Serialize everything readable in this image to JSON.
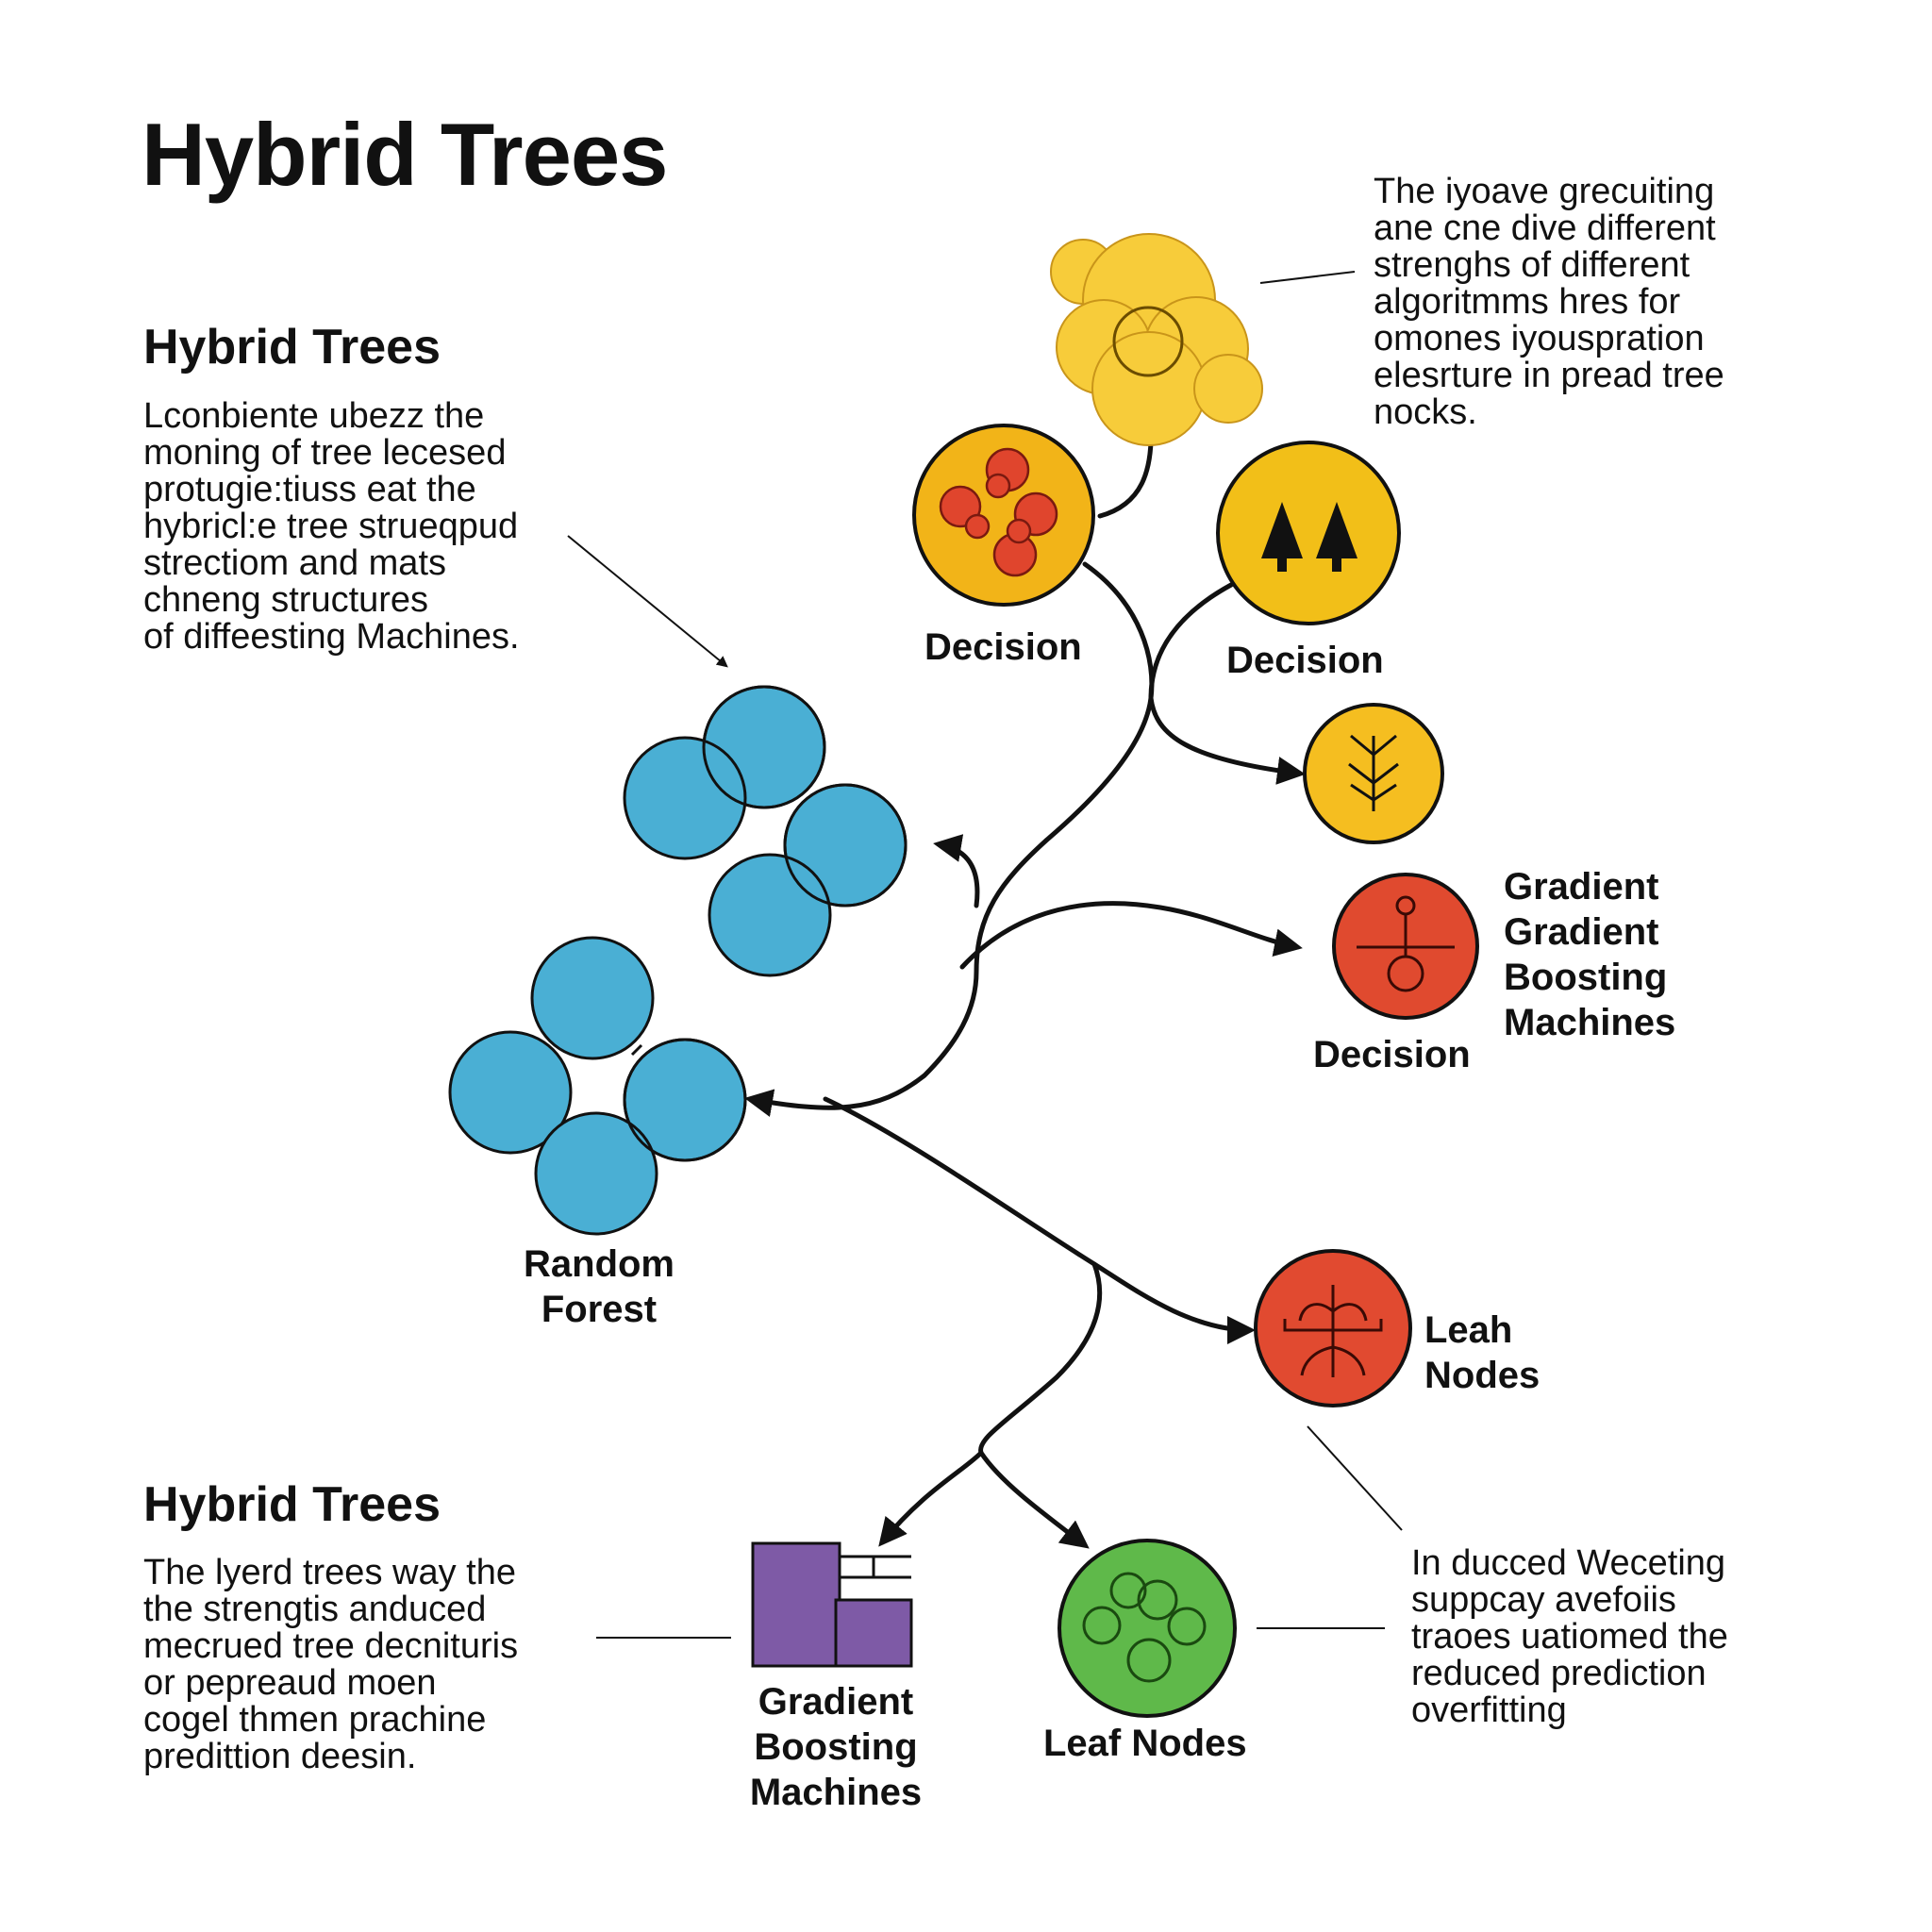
{
  "title": "Hybrid Trees",
  "sections": {
    "top_left": {
      "title": "Hybrid Trees",
      "text": "Lconbiente ubezz the\nmoning of  tree lecesed\nprotugie:tiuss eat the\nhybricl:e tree strueqpud\nstrectiom and mats\nchneng structures\nof diffeesting Machines."
    },
    "top_right": {
      "text": "The iyoave grecuiting\nane cne dive different\nstrenghs of different\nalgoritmms hres for\nomones iyouspration\nelesrture in pread tree\nnocks."
    },
    "bottom_left": {
      "title": "Hybrid Trees",
      "text": "The lyerd trees way the\nthe strengtis anduced\nmecrued tree decnituris\nor pepreaud moen\ncogel thmen prachine\npredittion deesin."
    },
    "bottom_right": {
      "text": "In ducced Weceting\nsuppcay avefoiis\ntraoes uatiomed the\nreduced prediction\noverfitting"
    }
  },
  "nodes": {
    "decision_left": {
      "label": "Decision",
      "icon": "cluster-icon",
      "color": "#F2B418"
    },
    "decision_right": {
      "label": "Decision",
      "icon": "tree-icon",
      "color": "#F2BF18"
    },
    "small_yellow": {
      "icon": "branch-icon",
      "color": "#F5BE20"
    },
    "gradient_red": {
      "label": "Gradient\nGradient\nBoosting\nMachines",
      "sublabel": "Decision",
      "icon": "node-icon",
      "color": "#E04A2F"
    },
    "random_forest": {
      "label": "Random\nForest",
      "color": "#4AAFD4"
    },
    "leaf_red": {
      "label": "Leah\nNodes",
      "icon": "root-icon",
      "color": "#E14A30"
    },
    "gbm_purple": {
      "label": "Gradient\nBoosting\nMachines",
      "icon": "block-icon",
      "color": "#7E5AA6"
    },
    "leaf_green": {
      "label": "Leaf Nodes",
      "icon": "cluster-icon",
      "color": "#5FB94A"
    },
    "yellow_cloud": {
      "color": "#F7CC3A"
    }
  },
  "colors": {
    "stroke": "#111111",
    "blue": "#4AAFD4",
    "yellow": "#F2B418",
    "red": "#E04A2F",
    "green": "#5FB94A",
    "purple": "#7E5AA6"
  }
}
